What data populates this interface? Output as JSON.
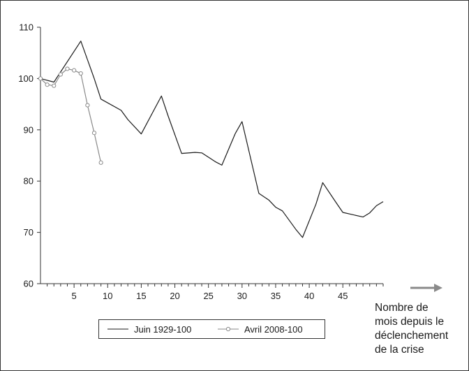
{
  "chart_data": {
    "type": "line",
    "title": "",
    "xlabel": "",
    "ylabel": "",
    "xlim": [
      0,
      51
    ],
    "ylim": [
      60,
      110
    ],
    "x_ticks": [
      5,
      10,
      15,
      20,
      25,
      30,
      35,
      40,
      45
    ],
    "y_ticks": [
      60,
      70,
      80,
      90,
      100,
      110
    ],
    "grid": false,
    "legend_position": "bottom",
    "x_note_lines": [
      "Nombre de",
      "mois depuis le",
      "déclenchement",
      "de la crise"
    ],
    "series": [
      {
        "name": "Juin 1929-100",
        "color": "#1a1a1a",
        "marker": "none",
        "points": [
          [
            0,
            100
          ],
          [
            2,
            99.3
          ],
          [
            6,
            107.3
          ],
          [
            8,
            100
          ],
          [
            9,
            96
          ],
          [
            12,
            93.8
          ],
          [
            13,
            92
          ],
          [
            15,
            89.2
          ],
          [
            18,
            96.6
          ],
          [
            19,
            92.7
          ],
          [
            21,
            85.4
          ],
          [
            23,
            85.6
          ],
          [
            24,
            85.5
          ],
          [
            26,
            83.8
          ],
          [
            27,
            83.1
          ],
          [
            29,
            89.3
          ],
          [
            30,
            91.6
          ],
          [
            32.5,
            77.6
          ],
          [
            34,
            76.3
          ],
          [
            35,
            74.9
          ],
          [
            36,
            74.2
          ],
          [
            38,
            70.6
          ],
          [
            39,
            69
          ],
          [
            41,
            75.5
          ],
          [
            42,
            79.7
          ],
          [
            44,
            75.8
          ],
          [
            45,
            73.9
          ],
          [
            48,
            73
          ],
          [
            49,
            73.8
          ],
          [
            50,
            75.2
          ],
          [
            51,
            76
          ]
        ]
      },
      {
        "name": "Avril 2008-100",
        "color": "#8a8a8a",
        "marker": "circle",
        "points": [
          [
            0,
            100
          ],
          [
            1,
            98.8
          ],
          [
            2,
            98.6
          ],
          [
            3,
            100.8
          ],
          [
            4,
            101.9
          ],
          [
            5,
            101.6
          ],
          [
            6,
            101
          ],
          [
            7,
            94.8
          ],
          [
            8,
            89.4
          ],
          [
            9,
            83.6
          ]
        ]
      }
    ]
  }
}
